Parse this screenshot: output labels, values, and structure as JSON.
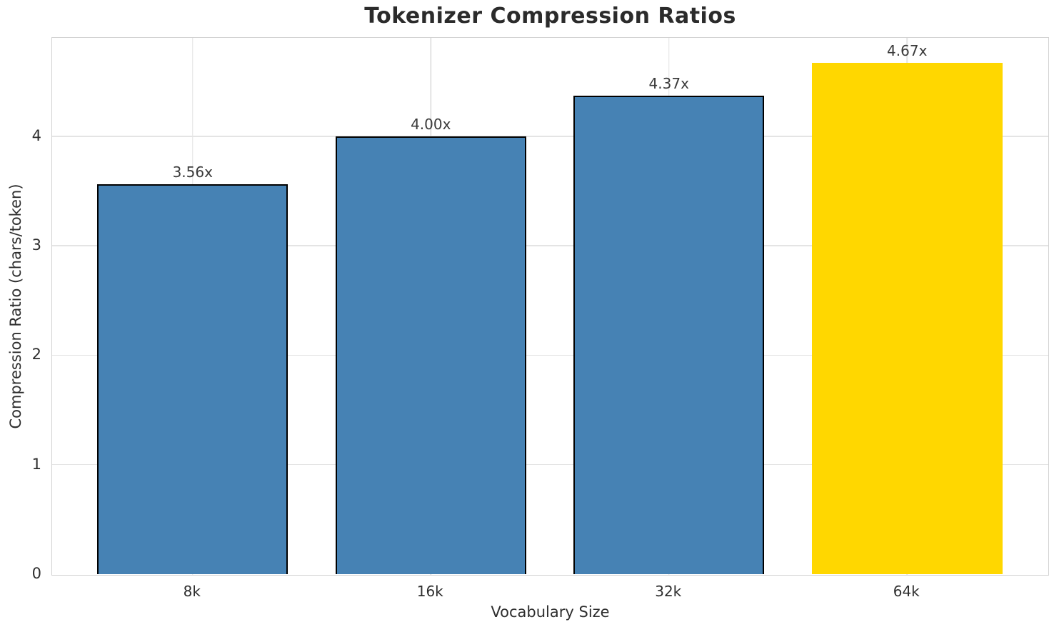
{
  "chart_data": {
    "type": "bar",
    "title": "Tokenizer Compression Ratios",
    "xlabel": "Vocabulary Size",
    "ylabel": "Compression Ratio (chars/token)",
    "categories": [
      "8k",
      "16k",
      "32k",
      "64k"
    ],
    "values": [
      3.56,
      4.0,
      4.37,
      4.67
    ],
    "value_labels": [
      "3.56x",
      "4.00x",
      "4.37x",
      "4.67x"
    ],
    "bar_colors": [
      "#4682B4",
      "#4682B4",
      "#4682B4",
      "#FFD700"
    ],
    "bar_edge_colors": [
      "#000000",
      "#000000",
      "#000000",
      "none"
    ],
    "yticks": [
      0,
      1,
      2,
      3,
      4
    ],
    "ylim": [
      0,
      4.9
    ],
    "xlim": [
      -0.59,
      3.59
    ],
    "bar_width": 0.8,
    "grid": true,
    "legend": "none",
    "grid_color": "#e4e4e4",
    "spine_color": "#d2d2d2",
    "highlight_color": "#FFD700",
    "base_color": "#4682B4"
  }
}
